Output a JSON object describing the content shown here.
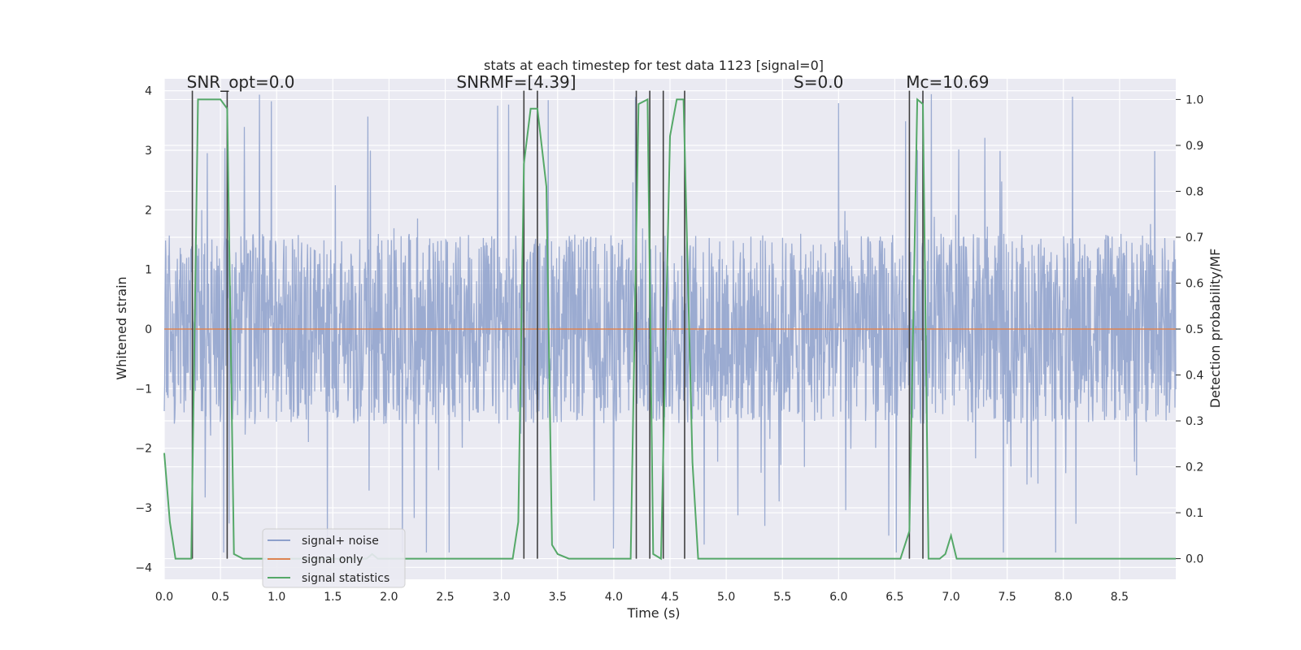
{
  "chart_data": {
    "type": "line",
    "title": "stats at each timestep for test data 1123 [signal=0]",
    "xlabel": "Time (s)",
    "ylabel": "Whitened strain",
    "ylabel_right": "Detection probability/MF",
    "xlim": [
      0.0,
      9.0
    ],
    "ylim": [
      -4.2,
      4.2
    ],
    "ylim_right": [
      -0.045,
      1.045
    ],
    "x_ticks": [
      "0.0",
      "0.5",
      "1.0",
      "1.5",
      "2.0",
      "2.5",
      "3.0",
      "3.5",
      "4.0",
      "4.5",
      "5.0",
      "5.5",
      "6.0",
      "6.5",
      "7.0",
      "7.5",
      "8.0",
      "8.5"
    ],
    "y_ticks": [
      "4",
      "3",
      "2",
      "1",
      "0",
      "−1",
      "−2",
      "−3",
      "−4"
    ],
    "y_ticks_right": [
      "1.0",
      "0.9",
      "0.8",
      "0.7",
      "0.6",
      "0.5",
      "0.4",
      "0.3",
      "0.2",
      "0.1",
      "0.0"
    ],
    "grid": true,
    "legend_position": "lower-left",
    "annotations": [
      {
        "text": "SNR_opt=0.0",
        "x": 0.2,
        "y": 4.05
      },
      {
        "text": "SNRMF=[4.39]",
        "x": 2.6,
        "y": 4.05
      },
      {
        "text": "S=0.0",
        "x": 5.6,
        "y": 4.05
      },
      {
        "text": "Mc=10.69",
        "x": 6.6,
        "y": 4.05
      }
    ],
    "series": [
      {
        "name": "signal+ noise",
        "color": "#8da0cb",
        "kind": "noise",
        "band_envelope": {
          "typical_peak": 1.6,
          "spike_max_positive": 3.95,
          "spike_min_negative": -3.75
        }
      },
      {
        "name": "signal only",
        "color": "#dd8452",
        "x": [
          0.0,
          9.0
        ],
        "y": [
          0.0,
          0.0
        ]
      },
      {
        "name": "signal statistics",
        "color": "#55a868",
        "axis": "right",
        "x": [
          0.0,
          0.05,
          0.1,
          0.24,
          0.3,
          0.5,
          0.56,
          0.62,
          0.7,
          1.8,
          1.85,
          1.9,
          2.2,
          2.8,
          2.9,
          3.1,
          3.15,
          3.2,
          3.26,
          3.32,
          3.4,
          3.45,
          3.5,
          3.6,
          4.15,
          4.22,
          4.3,
          4.35,
          4.42,
          4.5,
          4.56,
          4.62,
          4.7,
          4.75,
          6.55,
          6.63,
          6.7,
          6.75,
          6.8,
          6.9,
          6.95,
          7.0,
          7.05,
          9.0
        ],
        "y": [
          0.23,
          0.08,
          0.0,
          0.0,
          1.0,
          1.0,
          0.98,
          0.01,
          0.0,
          0.0,
          0.01,
          0.0,
          0.0,
          0.0,
          0.0,
          0.0,
          0.08,
          0.86,
          0.98,
          0.98,
          0.81,
          0.03,
          0.01,
          0.0,
          0.0,
          0.99,
          1.0,
          0.01,
          0.0,
          0.92,
          1.0,
          1.0,
          0.21,
          0.0,
          0.0,
          0.06,
          1.0,
          0.99,
          0.0,
          0.0,
          0.01,
          0.05,
          0.0,
          0.0
        ]
      }
    ],
    "detection_markers_x": [
      0.25,
      0.56,
      3.2,
      3.32,
      4.2,
      4.32,
      4.44,
      4.63,
      6.63,
      6.75
    ],
    "detection_marker_color": "#404040"
  }
}
